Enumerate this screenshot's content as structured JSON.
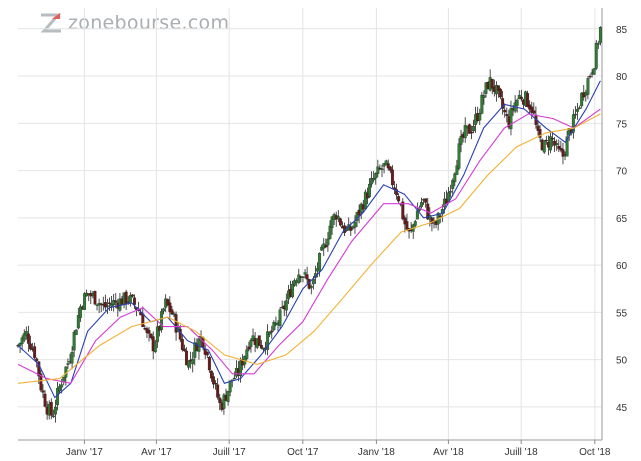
{
  "brand": {
    "logo_text": "zonebourse.com"
  },
  "colors": {
    "candle_up": "#2e7d32",
    "candle_down": "#6b1a1a",
    "ma_short": "#2b3fb5",
    "ma_mid": "#d63bd6",
    "ma_long": "#f2b233",
    "grid": "#e4e4e4",
    "axis_text": "#333333"
  },
  "chart_data": {
    "type": "candlestick",
    "title": "",
    "xlabel": "",
    "ylabel": "",
    "ylim": [
      41.5,
      87.2
    ],
    "y_ticks": [
      45,
      50,
      55,
      60,
      65,
      70,
      75,
      80,
      85
    ],
    "x_range": [
      "2016-10-10",
      "2018-10-10"
    ],
    "x_ticks": [
      {
        "label": "Janv '17",
        "date": "2017-01-01"
      },
      {
        "label": "Avr '17",
        "date": "2017-04-01"
      },
      {
        "label": "Juill '17",
        "date": "2017-07-01"
      },
      {
        "label": "Oct '17",
        "date": "2017-10-01"
      },
      {
        "label": "Janv '18",
        "date": "2018-01-01"
      },
      {
        "label": "Avr '18",
        "date": "2018-04-01"
      },
      {
        "label": "Juill '18",
        "date": "2018-07-01"
      },
      {
        "label": "Oct '18",
        "date": "2018-10-01"
      }
    ],
    "grid": true,
    "y_axis_side": "right",
    "close_path": [
      [
        "2016-10-10",
        51.5
      ],
      [
        "2016-10-20",
        52.8
      ],
      [
        "2016-11-01",
        50.5
      ],
      [
        "2016-11-08",
        47.0
      ],
      [
        "2016-11-15",
        45.0
      ],
      [
        "2016-11-22",
        44.0
      ],
      [
        "2016-11-29",
        46.5
      ],
      [
        "2016-12-06",
        48.5
      ],
      [
        "2016-12-13",
        50.0
      ],
      [
        "2016-12-20",
        53.0
      ],
      [
        "2016-12-28",
        56.0
      ],
      [
        "2017-01-05",
        57.0
      ],
      [
        "2017-01-15",
        56.5
      ],
      [
        "2017-01-25",
        55.5
      ],
      [
        "2017-02-05",
        56.0
      ],
      [
        "2017-02-15",
        56.2
      ],
      [
        "2017-02-25",
        56.5
      ],
      [
        "2017-03-05",
        55.8
      ],
      [
        "2017-03-12",
        55.0
      ],
      [
        "2017-03-20",
        52.5
      ],
      [
        "2017-03-28",
        51.5
      ],
      [
        "2017-04-05",
        53.5
      ],
      [
        "2017-04-12",
        56.0
      ],
      [
        "2017-04-20",
        55.0
      ],
      [
        "2017-04-28",
        53.0
      ],
      [
        "2017-05-05",
        51.0
      ],
      [
        "2017-05-12",
        49.5
      ],
      [
        "2017-05-20",
        51.5
      ],
      [
        "2017-05-28",
        52.5
      ],
      [
        "2017-06-05",
        50.0
      ],
      [
        "2017-06-12",
        47.5
      ],
      [
        "2017-06-20",
        45.0
      ],
      [
        "2017-06-28",
        46.5
      ],
      [
        "2017-07-05",
        48.0
      ],
      [
        "2017-07-12",
        48.5
      ],
      [
        "2017-07-20",
        50.5
      ],
      [
        "2017-07-28",
        52.5
      ],
      [
        "2017-08-05",
        52.0
      ],
      [
        "2017-08-12",
        51.5
      ],
      [
        "2017-08-20",
        52.5
      ],
      [
        "2017-08-28",
        53.5
      ],
      [
        "2017-09-05",
        55.0
      ],
      [
        "2017-09-12",
        56.5
      ],
      [
        "2017-09-20",
        58.5
      ],
      [
        "2017-09-28",
        59.5
      ],
      [
        "2017-10-05",
        58.5
      ],
      [
        "2017-10-12",
        57.5
      ],
      [
        "2017-10-20",
        60.0
      ],
      [
        "2017-10-28",
        62.0
      ],
      [
        "2017-11-05",
        64.5
      ],
      [
        "2017-11-12",
        65.5
      ],
      [
        "2017-11-20",
        64.0
      ],
      [
        "2017-11-28",
        63.5
      ],
      [
        "2017-12-05",
        64.5
      ],
      [
        "2017-12-12",
        66.0
      ],
      [
        "2017-12-20",
        67.5
      ],
      [
        "2017-12-28",
        69.0
      ],
      [
        "2018-01-05",
        70.0
      ],
      [
        "2018-01-12",
        70.5
      ],
      [
        "2018-01-20",
        69.0
      ],
      [
        "2018-01-28",
        67.5
      ],
      [
        "2018-02-05",
        64.5
      ],
      [
        "2018-02-12",
        63.0
      ],
      [
        "2018-02-20",
        65.5
      ],
      [
        "2018-02-28",
        67.0
      ],
      [
        "2018-03-08",
        65.0
      ],
      [
        "2018-03-15",
        64.0
      ],
      [
        "2018-03-22",
        65.5
      ],
      [
        "2018-03-30",
        67.0
      ],
      [
        "2018-04-08",
        70.0
      ],
      [
        "2018-04-15",
        72.5
      ],
      [
        "2018-04-22",
        74.0
      ],
      [
        "2018-04-30",
        74.5
      ],
      [
        "2018-05-08",
        76.0
      ],
      [
        "2018-05-15",
        78.0
      ],
      [
        "2018-05-22",
        79.5
      ],
      [
        "2018-05-30",
        78.5
      ],
      [
        "2018-06-08",
        76.5
      ],
      [
        "2018-06-15",
        75.0
      ],
      [
        "2018-06-22",
        77.0
      ],
      [
        "2018-06-30",
        78.0
      ],
      [
        "2018-07-08",
        77.5
      ],
      [
        "2018-07-15",
        76.5
      ],
      [
        "2018-07-22",
        73.5
      ],
      [
        "2018-07-30",
        72.5
      ],
      [
        "2018-08-08",
        73.5
      ],
      [
        "2018-08-15",
        72.0
      ],
      [
        "2018-08-22",
        71.5
      ],
      [
        "2018-08-30",
        74.0
      ],
      [
        "2018-09-08",
        76.0
      ],
      [
        "2018-09-15",
        78.0
      ],
      [
        "2018-09-22",
        79.5
      ],
      [
        "2018-09-30",
        81.5
      ],
      [
        "2018-10-08",
        85.0
      ]
    ],
    "moving_averages": [
      {
        "window_days": 20,
        "color_key": "ma_short",
        "points": [
          [
            "2016-10-10",
            51.5
          ],
          [
            "2016-11-05",
            49.5
          ],
          [
            "2016-11-25",
            46.0
          ],
          [
            "2016-12-15",
            47.5
          ],
          [
            "2017-01-05",
            53.0
          ],
          [
            "2017-02-01",
            55.5
          ],
          [
            "2017-03-01",
            56.0
          ],
          [
            "2017-03-25",
            54.0
          ],
          [
            "2017-04-15",
            54.5
          ],
          [
            "2017-05-10",
            52.0
          ],
          [
            "2017-06-05",
            51.0
          ],
          [
            "2017-06-25",
            47.5
          ],
          [
            "2017-07-15",
            48.0
          ],
          [
            "2017-08-10",
            50.5
          ],
          [
            "2017-09-05",
            53.5
          ],
          [
            "2017-10-01",
            57.5
          ],
          [
            "2017-10-25",
            59.5
          ],
          [
            "2017-11-20",
            63.5
          ],
          [
            "2017-12-15",
            65.5
          ],
          [
            "2018-01-10",
            68.5
          ],
          [
            "2018-02-05",
            67.5
          ],
          [
            "2018-03-01",
            65.0
          ],
          [
            "2018-03-25",
            65.5
          ],
          [
            "2018-04-20",
            69.5
          ],
          [
            "2018-05-15",
            74.5
          ],
          [
            "2018-06-10",
            77.0
          ],
          [
            "2018-07-05",
            76.5
          ],
          [
            "2018-08-01",
            74.5
          ],
          [
            "2018-08-25",
            73.0
          ],
          [
            "2018-09-20",
            76.5
          ],
          [
            "2018-10-08",
            79.5
          ]
        ]
      },
      {
        "window_days": 50,
        "color_key": "ma_mid",
        "points": [
          [
            "2016-10-10",
            49.5
          ],
          [
            "2016-11-15",
            48.0
          ],
          [
            "2016-12-15",
            47.5
          ],
          [
            "2017-01-15",
            52.0
          ],
          [
            "2017-02-15",
            54.5
          ],
          [
            "2017-03-15",
            55.5
          ],
          [
            "2017-04-10",
            53.5
          ],
          [
            "2017-05-10",
            53.5
          ],
          [
            "2017-06-10",
            51.0
          ],
          [
            "2017-07-05",
            48.5
          ],
          [
            "2017-08-01",
            48.5
          ],
          [
            "2017-09-01",
            51.5
          ],
          [
            "2017-10-01",
            54.0
          ],
          [
            "2017-11-01",
            58.5
          ],
          [
            "2017-12-01",
            62.5
          ],
          [
            "2018-01-10",
            66.5
          ],
          [
            "2018-02-10",
            66.5
          ],
          [
            "2018-03-10",
            65.5
          ],
          [
            "2018-04-10",
            67.0
          ],
          [
            "2018-05-10",
            71.0
          ],
          [
            "2018-06-10",
            74.5
          ],
          [
            "2018-07-10",
            76.0
          ],
          [
            "2018-08-10",
            75.5
          ],
          [
            "2018-09-05",
            74.5
          ],
          [
            "2018-10-08",
            76.5
          ]
        ]
      },
      {
        "window_days": 100,
        "color_key": "ma_long",
        "points": [
          [
            "2016-10-10",
            47.5
          ],
          [
            "2016-12-01",
            48.0
          ],
          [
            "2017-01-20",
            51.5
          ],
          [
            "2017-03-01",
            53.5
          ],
          [
            "2017-04-15",
            54.5
          ],
          [
            "2017-05-20",
            53.0
          ],
          [
            "2017-06-25",
            50.5
          ],
          [
            "2017-08-05",
            49.5
          ],
          [
            "2017-09-10",
            50.5
          ],
          [
            "2017-10-15",
            53.0
          ],
          [
            "2017-11-20",
            56.5
          ],
          [
            "2017-12-25",
            60.0
          ],
          [
            "2018-02-01",
            63.5
          ],
          [
            "2018-03-10",
            64.5
          ],
          [
            "2018-04-15",
            66.0
          ],
          [
            "2018-05-20",
            69.5
          ],
          [
            "2018-06-25",
            72.5
          ],
          [
            "2018-08-01",
            74.0
          ],
          [
            "2018-09-05",
            74.5
          ],
          [
            "2018-10-08",
            76.0
          ]
        ]
      }
    ]
  }
}
